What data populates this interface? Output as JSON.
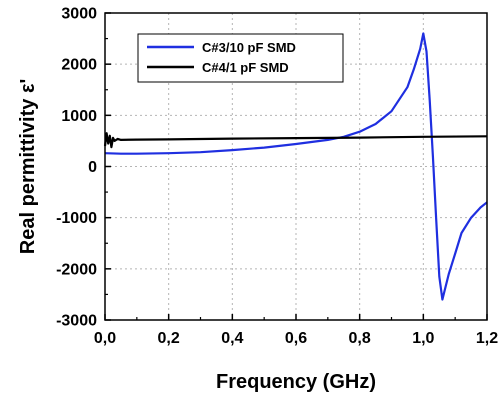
{
  "chart_data": {
    "type": "line",
    "title": "",
    "xlabel": "Frequency (GHz)",
    "ylabel": "Real permittivity ε'",
    "xlim": [
      0.0,
      1.2
    ],
    "ylim": [
      -3000,
      3000
    ],
    "x_ticks": [
      "0,0",
      "0,2",
      "0,4",
      "0,6",
      "0,8",
      "1,0",
      "1,2"
    ],
    "y_ticks": [
      "-3000",
      "-2000",
      "-1000",
      "0",
      "1000",
      "2000",
      "3000"
    ],
    "grid": true,
    "legend_position": "top-left",
    "series": [
      {
        "name": "C#3/10 pF SMD",
        "color": "#1f2fe0",
        "x": [
          0.0,
          0.05,
          0.1,
          0.2,
          0.3,
          0.4,
          0.5,
          0.6,
          0.7,
          0.75,
          0.8,
          0.85,
          0.9,
          0.95,
          0.97,
          0.99,
          1.0,
          1.01,
          1.02,
          1.03,
          1.04,
          1.05,
          1.06,
          1.08,
          1.1,
          1.12,
          1.15,
          1.18,
          1.2
        ],
        "y": [
          260,
          250,
          250,
          260,
          280,
          320,
          370,
          440,
          520,
          580,
          680,
          830,
          1080,
          1550,
          1900,
          2300,
          2600,
          2250,
          1300,
          200,
          -1000,
          -2150,
          -2600,
          -2100,
          -1700,
          -1300,
          -1000,
          -800,
          -700
        ]
      },
      {
        "name": "C#4/1 pF SMD",
        "color": "#000000",
        "x": [
          0.0,
          0.005,
          0.01,
          0.015,
          0.02,
          0.025,
          0.03,
          0.04,
          0.05,
          0.1,
          0.2,
          0.4,
          0.6,
          0.8,
          1.0,
          1.2
        ],
        "y": [
          400,
          650,
          450,
          600,
          380,
          560,
          500,
          540,
          520,
          525,
          530,
          545,
          555,
          565,
          580,
          590
        ]
      }
    ]
  }
}
